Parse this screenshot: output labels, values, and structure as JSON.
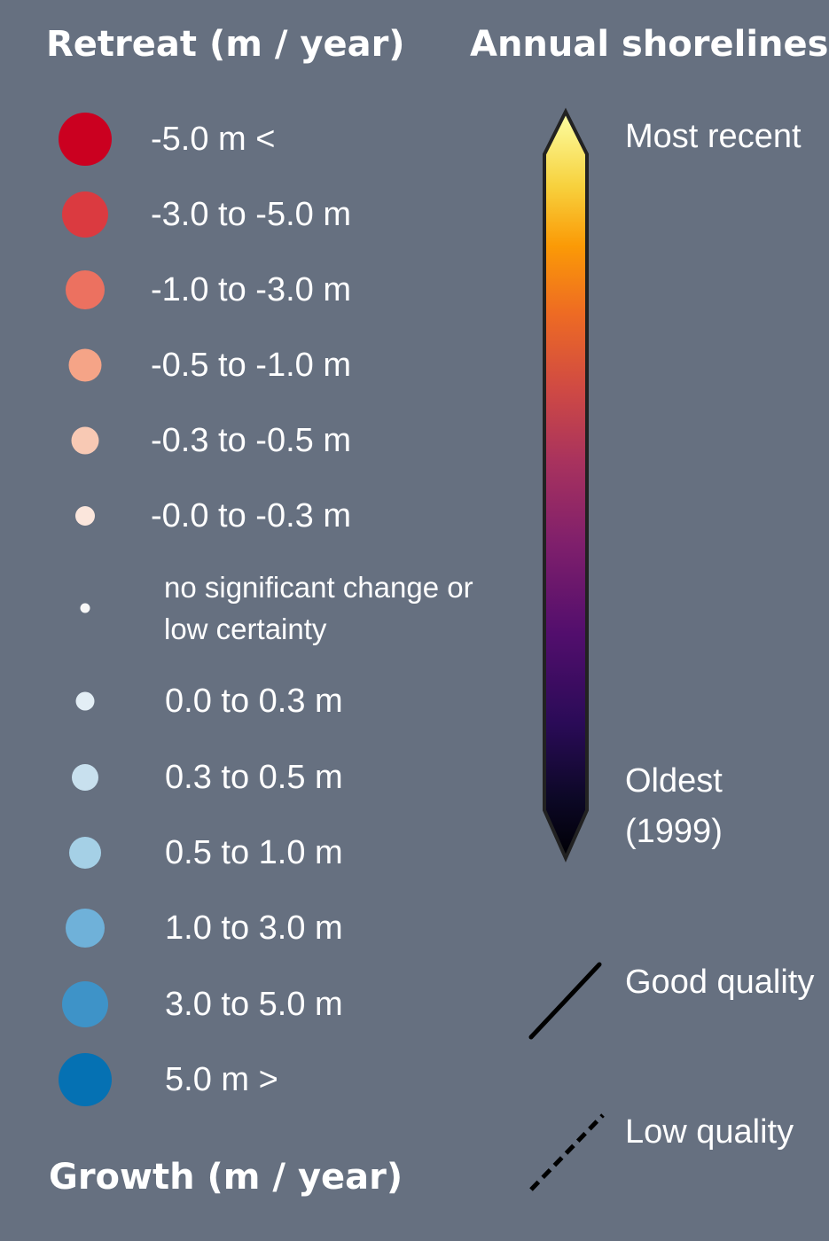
{
  "retreat_title": "Retreat (m / year)",
  "growth_title": "Growth (m / year)",
  "annual_title": "Annual shorelines",
  "rate_classes": [
    {
      "label": "-5.0 m <",
      "color": "#cb0020"
    },
    {
      "label": "-3.0 to -5.0 m",
      "color": "#db3a40"
    },
    {
      "label": "-1.0 to -3.0 m",
      "color": "#ec7160"
    },
    {
      "label": "-0.5 to -1.0 m",
      "color": "#f5a487"
    },
    {
      "label": "-0.3 to -0.5 m",
      "color": "#f8c9b4"
    },
    {
      "label": "-0.0 to -0.3 m",
      "color": "#fbe6dc"
    },
    {
      "label": "no significant change or low certainty",
      "color": "#f7f7f7"
    },
    {
      "label": "0.0 to 0.3 m",
      "color": "#e3eef5"
    },
    {
      "label": "0.3 to 0.5 m",
      "color": "#c8e0ee"
    },
    {
      "label": "0.5 to 1.0 m",
      "color": "#a5d0e6"
    },
    {
      "label": "1.0 to 3.0 m",
      "color": "#6fb1d9"
    },
    {
      "label": "3.0 to 5.0 m",
      "color": "#3e93c8"
    },
    {
      "label": "5.0 m >",
      "color": "#0571b3"
    }
  ],
  "colorbar": {
    "top_label": "Most recent",
    "bottom_label": "Oldest (1999)",
    "colormap": "inferno"
  },
  "line_styles": [
    {
      "label": "Good quality",
      "style": "solid"
    },
    {
      "label": "Low quality",
      "style": "dashed"
    }
  ]
}
